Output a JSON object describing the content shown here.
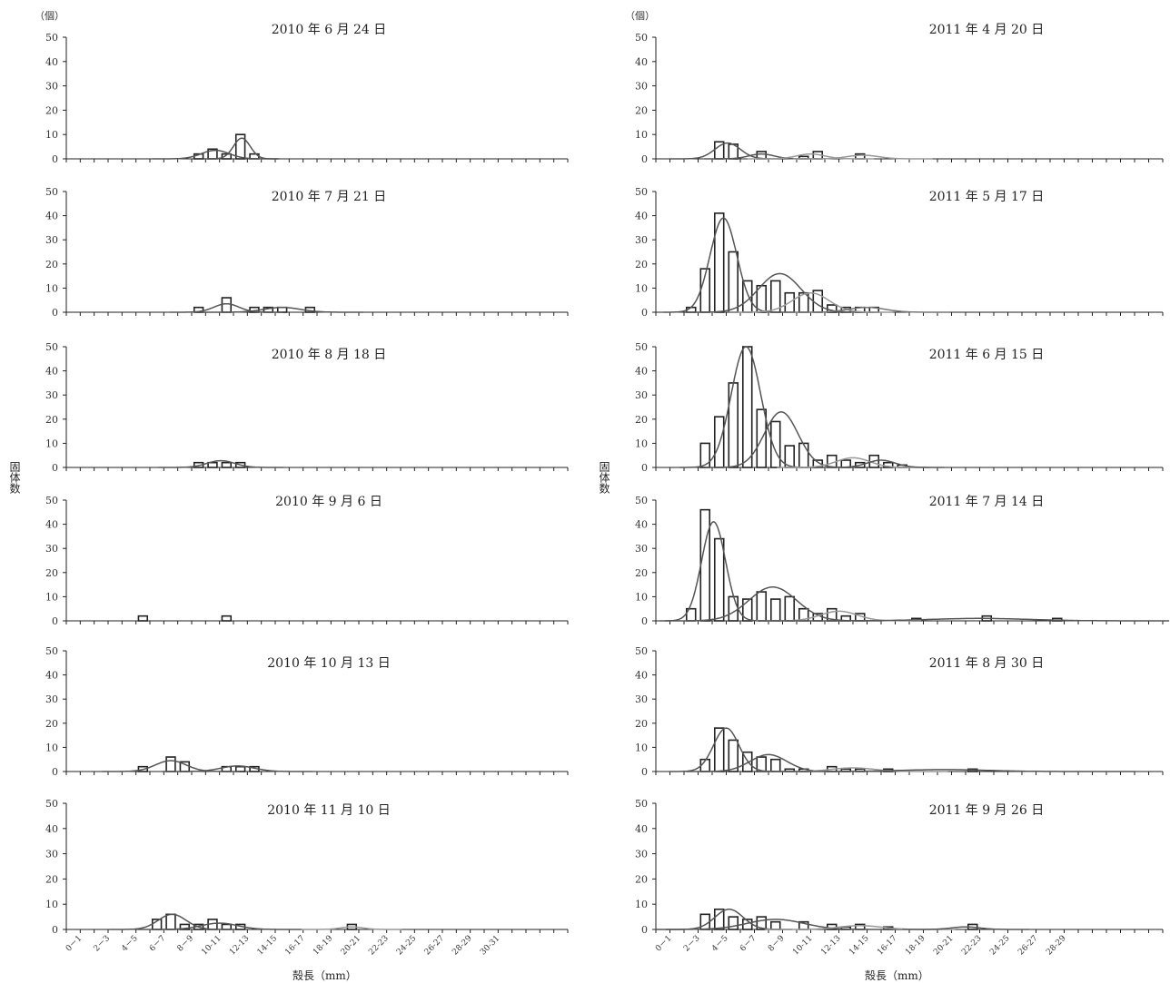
{
  "figure": {
    "y_unit": "（個）",
    "y_axis_title": "固体数",
    "x_axis_title": "殻長（mm）"
  },
  "chart_data": [
    {
      "type": "bar",
      "column": "left",
      "row": 0,
      "title": "2010 年 6 月 24 日",
      "ylim": [
        0,
        50
      ],
      "yticks": [
        0,
        10,
        20,
        30,
        40,
        50
      ],
      "bin_count": 36,
      "bars": [
        {
          "bin": 9,
          "value": 2
        },
        {
          "bin": 10,
          "value": 4
        },
        {
          "bin": 11,
          "value": 2
        },
        {
          "bin": 12,
          "value": 10
        },
        {
          "bin": 13,
          "value": 2
        }
      ],
      "curves": [
        {
          "mean": 10.2,
          "sd": 1.0,
          "peak": 3.5,
          "color": "#555555"
        },
        {
          "mean": 12.1,
          "sd": 0.6,
          "peak": 8.5,
          "color": "#555555"
        }
      ]
    },
    {
      "type": "bar",
      "column": "left",
      "row": 1,
      "title": "2010 年 7 月 21 日",
      "ylim": [
        0,
        50
      ],
      "yticks": [
        0,
        10,
        20,
        30,
        40,
        50
      ],
      "bin_count": 36,
      "bars": [
        {
          "bin": 9,
          "value": 2
        },
        {
          "bin": 11,
          "value": 6
        },
        {
          "bin": 13,
          "value": 2
        },
        {
          "bin": 14,
          "value": 2
        },
        {
          "bin": 15,
          "value": 2
        },
        {
          "bin": 17,
          "value": 2
        }
      ],
      "curves": [
        {
          "mean": 11.0,
          "sd": 0.9,
          "peak": 3.5,
          "color": "#555555"
        },
        {
          "mean": 15.0,
          "sd": 1.3,
          "peak": 2.0,
          "color": "#555555"
        }
      ]
    },
    {
      "type": "bar",
      "column": "left",
      "row": 2,
      "title": "2010 年 8 月 18 日",
      "ylim": [
        0,
        50
      ],
      "yticks": [
        0,
        10,
        20,
        30,
        40,
        50
      ],
      "bin_count": 36,
      "bars": [
        {
          "bin": 9,
          "value": 2
        },
        {
          "bin": 10,
          "value": 2
        },
        {
          "bin": 11,
          "value": 2
        },
        {
          "bin": 12,
          "value": 2
        }
      ],
      "curves": [
        {
          "mean": 10.6,
          "sd": 1.0,
          "peak": 2.8,
          "color": "#555555"
        }
      ]
    },
    {
      "type": "bar",
      "column": "left",
      "row": 3,
      "title": "2010 年 9 月 6 日",
      "ylim": [
        0,
        50
      ],
      "yticks": [
        0,
        10,
        20,
        30,
        40,
        50
      ],
      "bin_count": 36,
      "bars": [
        {
          "bin": 5,
          "value": 2
        },
        {
          "bin": 11,
          "value": 2
        }
      ],
      "curves": []
    },
    {
      "type": "bar",
      "column": "left",
      "row": 4,
      "title": "2010 年 10 月 13 日",
      "ylim": [
        0,
        50
      ],
      "yticks": [
        0,
        10,
        20,
        30,
        40,
        50
      ],
      "bin_count": 36,
      "bars": [
        {
          "bin": 5,
          "value": 2
        },
        {
          "bin": 7,
          "value": 6
        },
        {
          "bin": 8,
          "value": 4
        },
        {
          "bin": 11,
          "value": 2
        },
        {
          "bin": 12,
          "value": 2
        },
        {
          "bin": 13,
          "value": 2
        }
      ],
      "curves": [
        {
          "mean": 7.0,
          "sd": 1.1,
          "peak": 4.5,
          "color": "#555555"
        },
        {
          "mean": 11.8,
          "sd": 1.2,
          "peak": 2.3,
          "color": "#555555"
        }
      ]
    },
    {
      "type": "bar",
      "column": "left",
      "row": 5,
      "title": "2010 年 11 月 10 日",
      "ylim": [
        0,
        50
      ],
      "yticks": [
        0,
        10,
        20,
        30,
        40,
        50
      ],
      "bin_count": 36,
      "bars": [
        {
          "bin": 6,
          "value": 4
        },
        {
          "bin": 7,
          "value": 6
        },
        {
          "bin": 8,
          "value": 2
        },
        {
          "bin": 9,
          "value": 2
        },
        {
          "bin": 10,
          "value": 4
        },
        {
          "bin": 11,
          "value": 2
        },
        {
          "bin": 12,
          "value": 2
        },
        {
          "bin": 20,
          "value": 2
        }
      ],
      "curves": [
        {
          "mean": 7.1,
          "sd": 1.0,
          "peak": 6.0,
          "color": "#555555"
        },
        {
          "mean": 10.5,
          "sd": 1.3,
          "peak": 2.5,
          "color": "#555555"
        },
        {
          "mean": 20.0,
          "sd": 0.8,
          "peak": 1.0,
          "color": "#999999"
        }
      ]
    },
    {
      "type": "bar",
      "column": "right",
      "row": 0,
      "title": "2011 年 4 月 20 日",
      "ylim": [
        0,
        50
      ],
      "yticks": [
        0,
        10,
        20,
        30,
        40,
        50
      ],
      "bin_count": 36,
      "bars": [
        {
          "bin": 4,
          "value": 7
        },
        {
          "bin": 5,
          "value": 6
        },
        {
          "bin": 7,
          "value": 3
        },
        {
          "bin": 10,
          "value": 1
        },
        {
          "bin": 11,
          "value": 3
        },
        {
          "bin": 14,
          "value": 2
        }
      ],
      "curves": [
        {
          "mean": 4.6,
          "sd": 0.9,
          "peak": 6.5,
          "color": "#555555"
        },
        {
          "mean": 7.0,
          "sd": 0.9,
          "peak": 2.0,
          "color": "#555555"
        },
        {
          "mean": 10.5,
          "sd": 1.0,
          "peak": 2.0,
          "color": "#999999"
        },
        {
          "mean": 14.2,
          "sd": 1.1,
          "peak": 1.5,
          "color": "#999999"
        }
      ]
    },
    {
      "type": "bar",
      "column": "right",
      "row": 1,
      "title": "2011 年 5 月 17 日",
      "ylim": [
        0,
        50
      ],
      "yticks": [
        0,
        10,
        20,
        30,
        40,
        50
      ],
      "bin_count": 36,
      "bars": [
        {
          "bin": 2,
          "value": 2
        },
        {
          "bin": 3,
          "value": 18
        },
        {
          "bin": 4,
          "value": 41
        },
        {
          "bin": 5,
          "value": 25
        },
        {
          "bin": 6,
          "value": 13
        },
        {
          "bin": 7,
          "value": 11
        },
        {
          "bin": 8,
          "value": 13
        },
        {
          "bin": 9,
          "value": 8
        },
        {
          "bin": 10,
          "value": 8
        },
        {
          "bin": 11,
          "value": 9
        },
        {
          "bin": 12,
          "value": 3
        },
        {
          "bin": 13,
          "value": 2
        },
        {
          "bin": 14,
          "value": 2
        },
        {
          "bin": 15,
          "value": 2
        }
      ],
      "curves": [
        {
          "mean": 4.3,
          "sd": 0.95,
          "peak": 39,
          "color": "#555555"
        },
        {
          "mean": 8.3,
          "sd": 1.5,
          "peak": 16,
          "color": "#555555"
        },
        {
          "mean": 10.5,
          "sd": 1.3,
          "peak": 8,
          "color": "#999999"
        },
        {
          "mean": 14.5,
          "sd": 1.3,
          "peak": 2,
          "color": "#777777"
        }
      ]
    },
    {
      "type": "bar",
      "column": "right",
      "row": 2,
      "title": "2011 年 6 月 15 日",
      "ylim": [
        0,
        50
      ],
      "yticks": [
        0,
        10,
        20,
        30,
        40,
        50
      ],
      "bin_count": 36,
      "bars": [
        {
          "bin": 3,
          "value": 10
        },
        {
          "bin": 4,
          "value": 21
        },
        {
          "bin": 5,
          "value": 35
        },
        {
          "bin": 6,
          "value": 50
        },
        {
          "bin": 7,
          "value": 24
        },
        {
          "bin": 8,
          "value": 19
        },
        {
          "bin": 9,
          "value": 9
        },
        {
          "bin": 10,
          "value": 10
        },
        {
          "bin": 11,
          "value": 3
        },
        {
          "bin": 12,
          "value": 5
        },
        {
          "bin": 13,
          "value": 3
        },
        {
          "bin": 14,
          "value": 2
        },
        {
          "bin": 15,
          "value": 5
        },
        {
          "bin": 16,
          "value": 2
        },
        {
          "bin": 17,
          "value": 1
        }
      ],
      "curves": [
        {
          "mean": 5.9,
          "sd": 1.05,
          "peak": 50,
          "color": "#555555"
        },
        {
          "mean": 8.4,
          "sd": 1.2,
          "peak": 23,
          "color": "#555555"
        },
        {
          "mean": 13.5,
          "sd": 1.2,
          "peak": 4,
          "color": "#999999"
        },
        {
          "mean": 15.5,
          "sd": 1.0,
          "peak": 3,
          "color": "#555555"
        }
      ]
    },
    {
      "type": "bar",
      "column": "right",
      "row": 3,
      "title": "2011 年 7 月 14 日",
      "ylim": [
        0,
        50
      ],
      "yticks": [
        0,
        10,
        20,
        30,
        40,
        50
      ],
      "bin_count": 36,
      "bars": [
        {
          "bin": 2,
          "value": 5
        },
        {
          "bin": 3,
          "value": 46
        },
        {
          "bin": 4,
          "value": 34
        },
        {
          "bin": 5,
          "value": 10
        },
        {
          "bin": 6,
          "value": 9
        },
        {
          "bin": 7,
          "value": 12
        },
        {
          "bin": 8,
          "value": 9
        },
        {
          "bin": 9,
          "value": 10
        },
        {
          "bin": 10,
          "value": 5
        },
        {
          "bin": 11,
          "value": 3
        },
        {
          "bin": 12,
          "value": 5
        },
        {
          "bin": 13,
          "value": 2
        },
        {
          "bin": 14,
          "value": 3
        },
        {
          "bin": 18,
          "value": 1
        },
        {
          "bin": 23,
          "value": 2
        },
        {
          "bin": 28,
          "value": 1
        }
      ],
      "curves": [
        {
          "mean": 3.6,
          "sd": 0.85,
          "peak": 41,
          "color": "#555555"
        },
        {
          "mean": 7.8,
          "sd": 1.7,
          "peak": 14,
          "color": "#555555"
        },
        {
          "mean": 12.5,
          "sd": 1.3,
          "peak": 4,
          "color": "#999999"
        },
        {
          "mean": 22.5,
          "sd": 3.5,
          "peak": 1,
          "color": "#555555"
        }
      ]
    },
    {
      "type": "bar",
      "column": "right",
      "row": 4,
      "title": "2011 年 8 月 30 日",
      "ylim": [
        0,
        50
      ],
      "yticks": [
        0,
        10,
        20,
        30,
        40,
        50
      ],
      "bin_count": 36,
      "bars": [
        {
          "bin": 3,
          "value": 5
        },
        {
          "bin": 4,
          "value": 18
        },
        {
          "bin": 5,
          "value": 13
        },
        {
          "bin": 6,
          "value": 8
        },
        {
          "bin": 7,
          "value": 6
        },
        {
          "bin": 8,
          "value": 5
        },
        {
          "bin": 9,
          "value": 1
        },
        {
          "bin": 10,
          "value": 1
        },
        {
          "bin": 12,
          "value": 2
        },
        {
          "bin": 13,
          "value": 1
        },
        {
          "bin": 14,
          "value": 1
        },
        {
          "bin": 16,
          "value": 1
        },
        {
          "bin": 22,
          "value": 1
        }
      ],
      "curves": [
        {
          "mean": 4.5,
          "sd": 0.9,
          "peak": 18,
          "color": "#555555"
        },
        {
          "mean": 7.5,
          "sd": 1.3,
          "peak": 7,
          "color": "#555555"
        },
        {
          "mean": 13.5,
          "sd": 1.5,
          "peak": 1.5,
          "color": "#999999"
        },
        {
          "mean": 20.0,
          "sd": 3.0,
          "peak": 0.8,
          "color": "#555555"
        }
      ]
    },
    {
      "type": "bar",
      "column": "right",
      "row": 5,
      "title": "2011 年 9 月 26 日",
      "ylim": [
        0,
        50
      ],
      "yticks": [
        0,
        10,
        20,
        30,
        40,
        50
      ],
      "bin_count": 36,
      "bars": [
        {
          "bin": 3,
          "value": 6
        },
        {
          "bin": 4,
          "value": 8
        },
        {
          "bin": 5,
          "value": 5
        },
        {
          "bin": 6,
          "value": 4
        },
        {
          "bin": 7,
          "value": 5
        },
        {
          "bin": 8,
          "value": 3
        },
        {
          "bin": 10,
          "value": 3
        },
        {
          "bin": 12,
          "value": 2
        },
        {
          "bin": 13,
          "value": 1
        },
        {
          "bin": 14,
          "value": 2
        },
        {
          "bin": 16,
          "value": 1
        },
        {
          "bin": 22,
          "value": 2
        }
      ],
      "curves": [
        {
          "mean": 4.7,
          "sd": 1.0,
          "peak": 8,
          "color": "#555555"
        },
        {
          "mean": 8.0,
          "sd": 2.0,
          "peak": 4,
          "color": "#555555"
        },
        {
          "mean": 14.0,
          "sd": 1.5,
          "peak": 1.5,
          "color": "#999999"
        },
        {
          "mean": 21.5,
          "sd": 1.0,
          "peak": 1,
          "color": "#555555"
        }
      ]
    }
  ],
  "x_categories_left": [
    "0－1",
    "2－3",
    "4－5",
    "6－7",
    "8－9",
    "10-11",
    "12-13",
    "14-15",
    "16-17",
    "18-19",
    "20-21",
    "22-23",
    "24-25",
    "26-27",
    "28-29",
    "30-31"
  ],
  "x_categories_right": [
    "0－1",
    "2－3",
    "4－5",
    "6－7",
    "8－9",
    "10-11",
    "12-13",
    "14-15",
    "16-17",
    "18-19",
    "20-21",
    "22-23",
    "24-25",
    "26-27",
    "28-29"
  ]
}
